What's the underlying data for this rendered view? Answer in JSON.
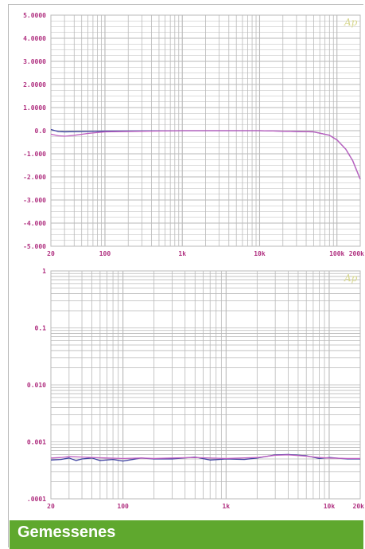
{
  "caption": "Gemessenes",
  "logo_text": "Ap",
  "colors": {
    "grid": "#b9b9b9",
    "tick_label": "#b03080",
    "series_blue": "#3b3fa0",
    "series_magenta": "#c060c0",
    "caption_bg": "#5fa82e"
  },
  "chart_data": [
    {
      "type": "line",
      "xscale": "log",
      "xlim": [
        20,
        200000
      ],
      "ylim": [
        -5,
        5
      ],
      "grid": true,
      "x_tick_labels": [
        "20",
        "100",
        "1k",
        "10k",
        "100k",
        "200k"
      ],
      "x_tick_values": [
        20,
        100,
        1000,
        10000,
        100000,
        200000
      ],
      "y_tick_labels": [
        "5.0000",
        "4.0000",
        "3.0000",
        "2.0000",
        "1.0000",
        "0.0",
        "-1.000",
        "-2.000",
        "-3.000",
        "-4.000",
        "-5.000"
      ],
      "y_tick_values": [
        5,
        4,
        3,
        2,
        1,
        0,
        -1,
        -2,
        -3,
        -4,
        -5
      ],
      "series": [
        {
          "color": "#3b3fa0",
          "x": [
            20,
            25,
            30,
            50,
            100,
            1000,
            10000,
            50000,
            80000,
            100000,
            130000,
            160000,
            200000
          ],
          "y": [
            0.05,
            -0.04,
            -0.05,
            -0.04,
            -0.02,
            0,
            0,
            -0.05,
            -0.2,
            -0.4,
            -0.8,
            -1.3,
            -2.1
          ]
        },
        {
          "color": "#c060c0",
          "x": [
            20,
            25,
            30,
            40,
            60,
            100,
            1000,
            10000,
            50000,
            80000,
            100000,
            130000,
            160000,
            200000
          ],
          "y": [
            -0.15,
            -0.22,
            -0.24,
            -0.2,
            -0.12,
            -0.05,
            0,
            0,
            -0.05,
            -0.2,
            -0.4,
            -0.8,
            -1.3,
            -2.1
          ]
        }
      ]
    },
    {
      "type": "line",
      "xscale": "log",
      "yscale": "log",
      "xlim": [
        20,
        20000
      ],
      "ylim": [
        0.0001,
        1
      ],
      "grid": true,
      "x_tick_labels": [
        "20",
        "100",
        "1k",
        "10k",
        "20k"
      ],
      "x_tick_values": [
        20,
        100,
        1000,
        10000,
        20000
      ],
      "y_tick_labels": [
        "1",
        "0.1",
        "0.010",
        "0.001",
        ".0001"
      ],
      "y_tick_values": [
        1,
        0.1,
        0.01,
        0.001,
        0.0001
      ],
      "series": [
        {
          "color": "#3b3fa0",
          "x": [
            20,
            25,
            30,
            35,
            40,
            50,
            60,
            80,
            100,
            150,
            200,
            300,
            500,
            700,
            1000,
            1500,
            2000,
            3000,
            4000,
            6000,
            8000,
            10000,
            15000,
            20000
          ],
          "y": [
            0.00048,
            0.00049,
            0.00052,
            0.00047,
            0.0005,
            0.00052,
            0.00047,
            0.00049,
            0.00046,
            0.00052,
            0.0005,
            0.0005,
            0.00054,
            0.00048,
            0.0005,
            0.00049,
            0.00052,
            0.00059,
            0.0006,
            0.00057,
            0.00051,
            0.00053,
            0.0005,
            0.0005
          ]
        },
        {
          "color": "#c060c0",
          "x": [
            20,
            25,
            30,
            40,
            50,
            70,
            100,
            150,
            200,
            300,
            500,
            1000,
            2000,
            3000,
            4000,
            6000,
            8000,
            10000,
            15000,
            20000
          ],
          "y": [
            0.00052,
            0.00053,
            0.00055,
            0.00054,
            0.00053,
            0.00052,
            0.00051,
            0.00052,
            0.00051,
            0.00052,
            0.00053,
            0.00051,
            0.00053,
            0.00058,
            0.00059,
            0.00056,
            0.00053,
            0.00052,
            0.00051,
            0.00051
          ]
        }
      ]
    }
  ]
}
